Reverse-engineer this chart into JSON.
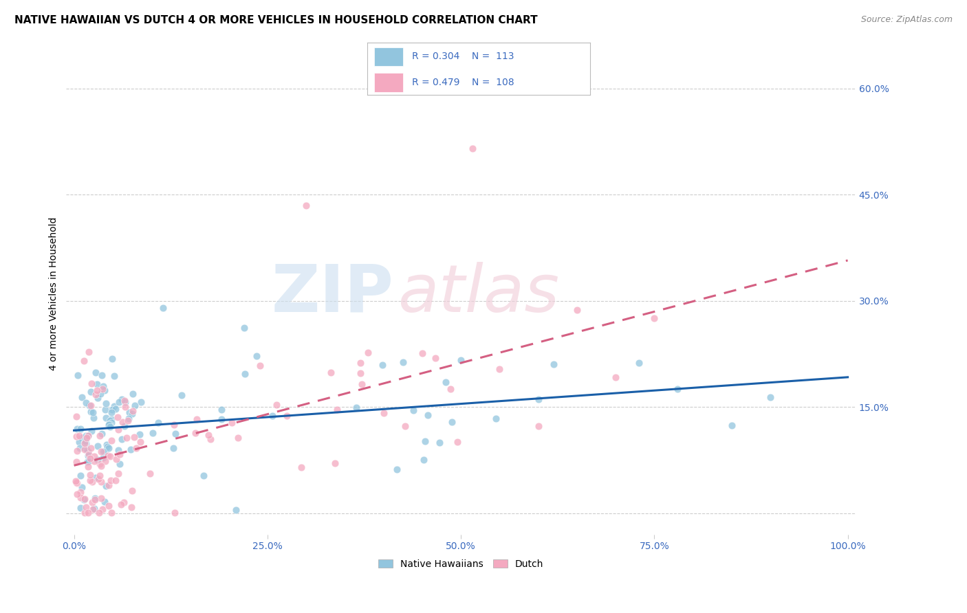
{
  "title": "NATIVE HAWAIIAN VS DUTCH 4 OR MORE VEHICLES IN HOUSEHOLD CORRELATION CHART",
  "source_text": "Source: ZipAtlas.com",
  "ylabel": "4 or more Vehicles in Household",
  "xlim": [
    -0.01,
    1.01
  ],
  "ylim": [
    -0.03,
    0.65
  ],
  "xticklabels": [
    "0.0%",
    "25.0%",
    "50.0%",
    "75.0%",
    "100.0%"
  ],
  "xtick_vals": [
    0.0,
    0.25,
    0.5,
    0.75,
    1.0
  ],
  "ytick_vals": [
    0.15,
    0.3,
    0.45,
    0.6
  ],
  "yticklabels_right": [
    "15.0%",
    "30.0%",
    "45.0%",
    "60.0%"
  ],
  "color_blue": "#92c5de",
  "color_pink": "#f4a9c0",
  "line_blue": "#1a5fa8",
  "line_pink": "#d45f82",
  "legend_text_color": "#3a6abf",
  "watermark_color": "#d8e8f0",
  "watermark_color2": "#f0d8e0",
  "background_color": "#ffffff",
  "grid_color": "#cccccc",
  "title_fontsize": 11,
  "axis_label_fontsize": 10,
  "tick_fontsize": 10,
  "legend_fontsize": 11
}
